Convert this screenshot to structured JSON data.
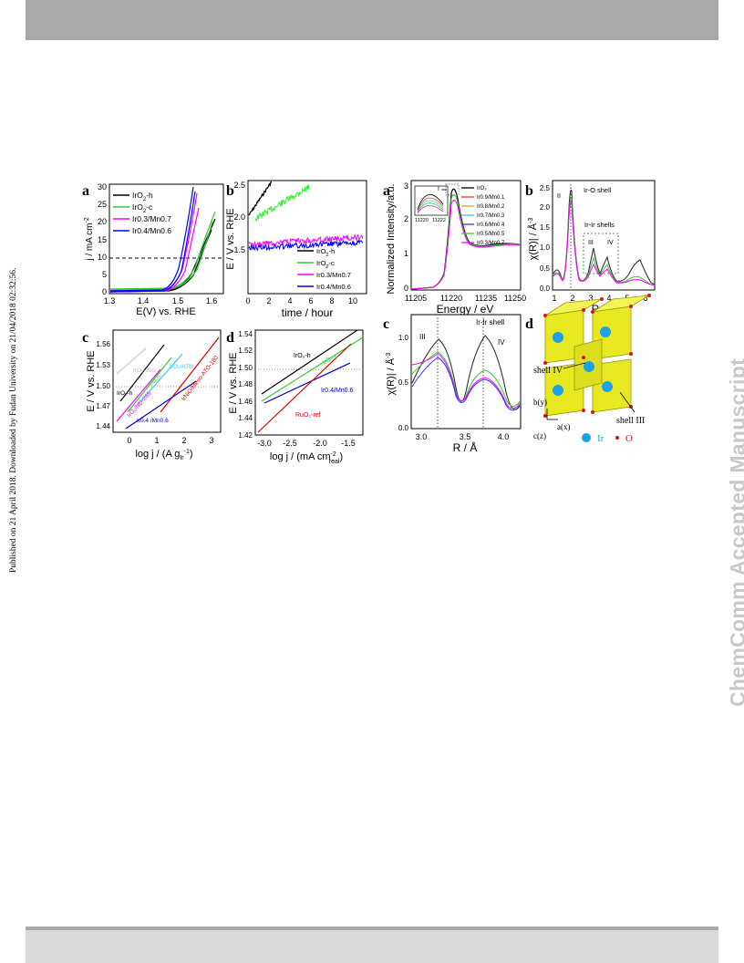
{
  "page": {
    "published_note": "Published on 21 April 2018. Downloaded by Fudan University on 21/04/2018 02:32:56.",
    "watermark": "ChemComm Accepted Manuscript"
  },
  "left_figure": {
    "a": {
      "label": "a",
      "ylabel": "j / mA cm",
      "ylabel_sup": "-2",
      "xlabel": "E(V) vs. RHE",
      "xticks": [
        "1.3",
        "1.4",
        "1.5",
        "1.6"
      ],
      "yticks": [
        "0",
        "5",
        "10",
        "15",
        "20",
        "25",
        "30"
      ],
      "legend": [
        {
          "main": "IrO",
          "sub": "2",
          "rest": "-h",
          "color": "#000000"
        },
        {
          "main": "IrO",
          "sub": "2",
          "rest": "-c",
          "color": "#33cc33"
        },
        {
          "main": "Ir0.3/Mn0.7",
          "sub": "",
          "rest": "",
          "color": "#ff00ff"
        },
        {
          "main": "Ir0.4/Mn0.6",
          "sub": "",
          "rest": "",
          "color": "#0000ff"
        }
      ]
    },
    "b": {
      "label": "b",
      "ylabel": "E / V vs. RHE",
      "xlabel": "time / hour",
      "xticks": [
        "0",
        "2",
        "4",
        "6",
        "8",
        "10"
      ],
      "yticks": [
        "1.5",
        "2.0",
        "2.5"
      ],
      "legend": [
        {
          "main": "IrO",
          "sub": "2",
          "rest": "-h",
          "color": "#000000"
        },
        {
          "main": "IrO",
          "sub": "2",
          "rest": "-c",
          "color": "#33cc33"
        },
        {
          "main": "Ir0.3/Mn0.7",
          "sub": "",
          "rest": "",
          "color": "#ff00ff"
        },
        {
          "main": "Ir0.4/Mn0.6",
          "sub": "",
          "rest": "",
          "color": "#0000ff"
        }
      ]
    },
    "c": {
      "label": "c",
      "ylabel": "E / V vs. RHE",
      "xlabel": "log j / (A g",
      "xlabel_sub": "Ir",
      "xlabel_end": ")",
      "xlabel_sup": "-1",
      "xticks": [
        "0",
        "1",
        "2",
        "3"
      ],
      "yticks": [
        "1.44",
        "1.47",
        "1.50",
        "1.53",
        "1.56"
      ],
      "annotations": [
        {
          "text": "IrO₂/ATO",
          "color": "#33ccff"
        },
        {
          "text": "IrO₂-h",
          "color": "#000000"
        },
        {
          "text": "IrO₂-c",
          "color": "#33cc33"
        },
        {
          "text": "IrO₂-265",
          "color": "#bbbbbb"
        },
        {
          "text": "IrO₂/ND-265",
          "color": "#ff00ff"
        },
        {
          "text": "IrNiO/Meso-ATO-180",
          "color": "#dd0000"
        },
        {
          "text": "Ir0.4 /Mn0.6",
          "color": "#0000cc"
        }
      ]
    },
    "d": {
      "label": "d",
      "ylabel": "E / V vs. RHE",
      "xlabel": "log j / (mA cm",
      "xlabel_sup": "-2",
      "xlabel_sub": "real",
      "xlabel_end": ")",
      "xticks": [
        "-3.0",
        "-2.5",
        "-2.0",
        "-1.5"
      ],
      "yticks": [
        "1.42",
        "1.44",
        "1.46",
        "1.48",
        "1.50",
        "1.52",
        "1.54"
      ],
      "annotations": [
        {
          "text": "IrO₂-h",
          "color": "#000000"
        },
        {
          "text": "IrO₂-c",
          "color": "#33cc33"
        },
        {
          "text": "Ir0.4/Mn0.6",
          "color": "#0000cc"
        },
        {
          "text": "RuO₂-ref",
          "color": "#dd0000"
        }
      ]
    }
  },
  "right_figure": {
    "a": {
      "label": "a",
      "ylabel": "Normalized Intensity/a.u.",
      "xlabel": "Energy / eV",
      "xticks": [
        "11205",
        "11220",
        "11235",
        "11250"
      ],
      "yticks": [
        "0",
        "1",
        "2",
        "3"
      ],
      "inset_xticks": [
        "11220",
        "11222"
      ],
      "inset_marker": "I",
      "legend": [
        {
          "text": "IrO₂",
          "color": "#000000"
        },
        {
          "text": "Ir0.9/Mn0.1",
          "color": "#ff3333"
        },
        {
          "text": "Ir0.8/Mn0.2",
          "color": "#ff9900"
        },
        {
          "text": "Ir0.7/Mn0.3",
          "color": "#33cccc"
        },
        {
          "text": "Ir0.6/Mn0.4",
          "color": "#3333ff"
        },
        {
          "text": "Ir0.5/Mn0.5",
          "color": "#33cc33"
        },
        {
          "text": "Ir0.3/Mn0.7",
          "color": "#ff00ff"
        }
      ]
    },
    "b": {
      "label": "b",
      "ylabel": "χ(R)| / Å",
      "ylabel_sup": "-3",
      "xlabel": "R / Å",
      "xticks": [
        "1",
        "2",
        "3",
        "4",
        "5",
        "6"
      ],
      "yticks": [
        "0.0",
        "0.5",
        "1.0",
        "1.5",
        "2.0",
        "2.5"
      ],
      "shell_ir_o": "Ir-O shell",
      "shell_ir_ir": "Ir-Ir shells",
      "marker_II": "II",
      "marker_III": "III",
      "marker_IV": "IV"
    },
    "c": {
      "label": "c",
      "ylabel": "χ(R)| / Å",
      "ylabel_sup": "-3",
      "xlabel": "R / Å",
      "xticks": [
        "3.0",
        "3.5",
        "4.0"
      ],
      "yticks": [
        "0.0",
        "0.5",
        "1.0"
      ],
      "shell": "Ir-Ir shell",
      "marker_III": "III",
      "marker_IV": "IV"
    },
    "d": {
      "label": "d",
      "shell_iv": "shell IV",
      "shell_iii": "shell III",
      "axis_b": "b(y)",
      "axis_a": "a(x)",
      "axis_c": "c(z)",
      "legend_ir": "Ir",
      "legend_o": "O"
    }
  }
}
